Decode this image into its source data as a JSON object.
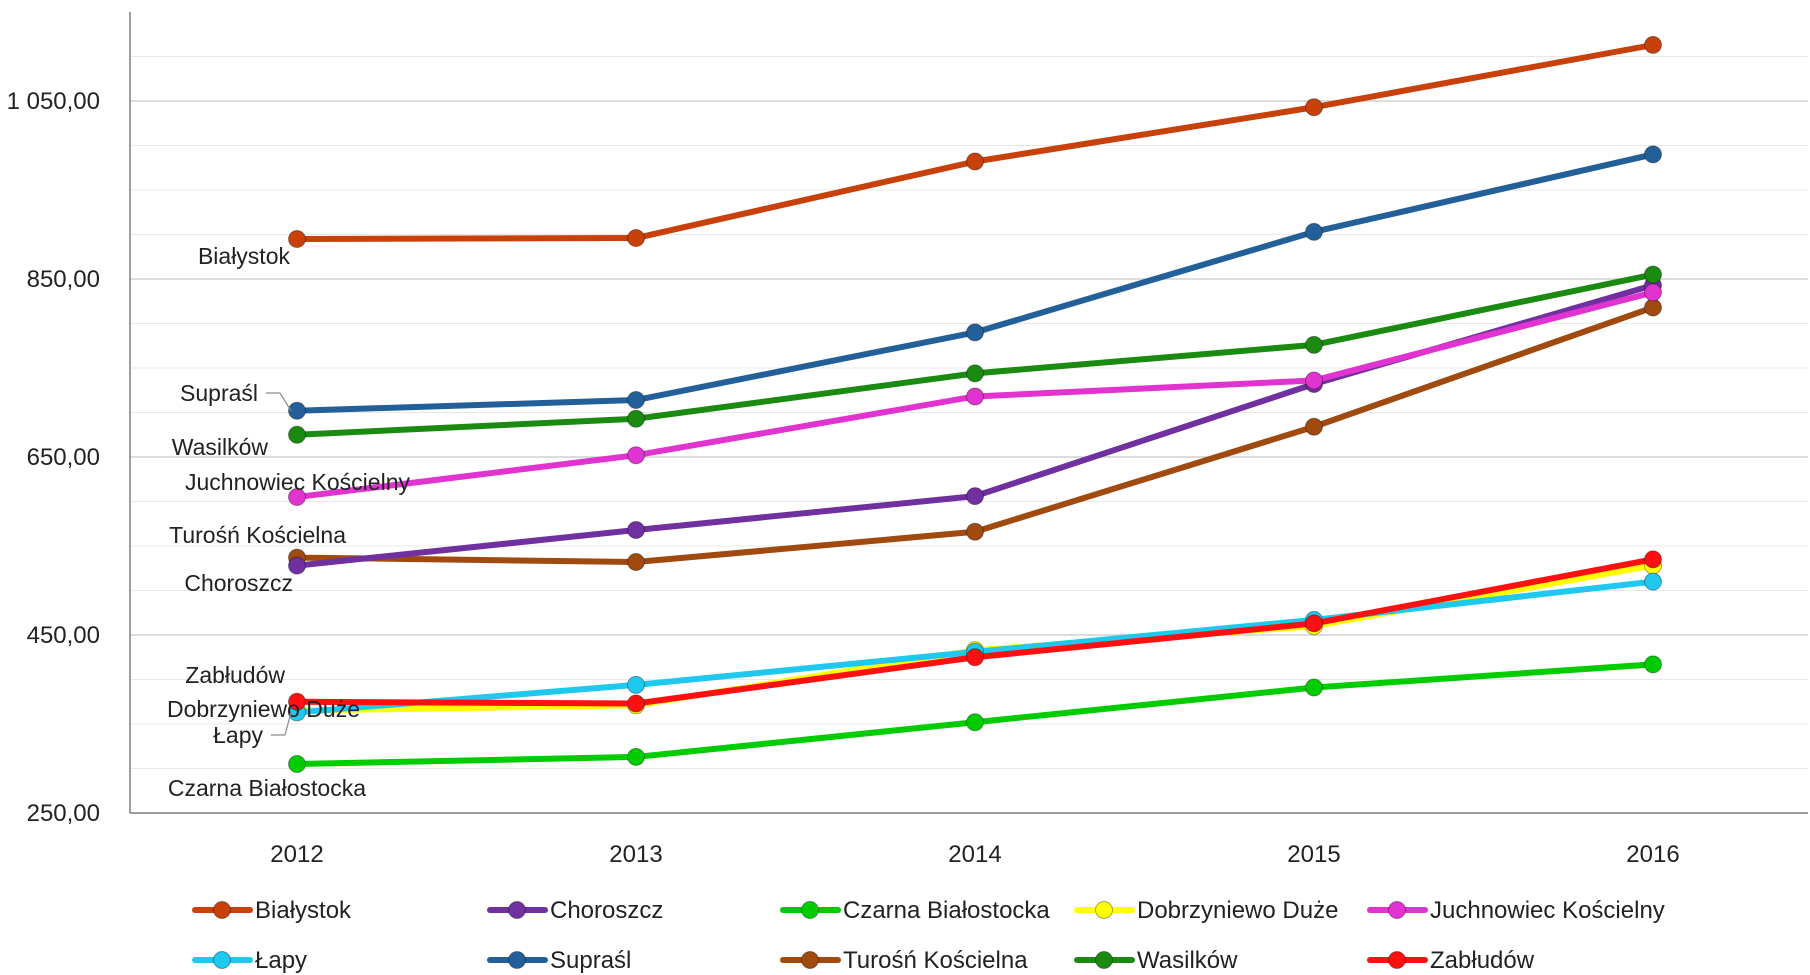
{
  "chart_data": {
    "type": "line",
    "title": "",
    "xlabel": "",
    "ylabel": "",
    "x": [
      "2012",
      "2013",
      "2014",
      "2015",
      "2016"
    ],
    "ylim": [
      250,
      1130
    ],
    "yticks": [
      250,
      450,
      650,
      850,
      1050
    ],
    "ytick_labels": [
      "250,00",
      "450,00",
      "650,00",
      "850,00",
      "1 050,00"
    ],
    "minor_gridlines": true,
    "legend_placement": "bottom",
    "series": [
      {
        "name": "Białystok",
        "color": "#c8400a",
        "values": [
          895,
          896,
          982,
          1043,
          1113
        ],
        "label": "Białystok"
      },
      {
        "name": "Choroszcz",
        "color": "#7030a0",
        "values": [
          528,
          568,
          606,
          732,
          843
        ],
        "label": "Choroszcz"
      },
      {
        "name": "Czarna Białostocka",
        "color": "#00cc00",
        "values": [
          305,
          313,
          352,
          391,
          417
        ],
        "label": "Czarna Białostocka"
      },
      {
        "name": "Dobrzyniewo Duże",
        "color": "#ffff00",
        "values": [
          365,
          371,
          433,
          460,
          528
        ],
        "label": "Dobrzyniewo Duże"
      },
      {
        "name": "Juchnowiec Kościelny",
        "color": "#e033d0",
        "values": [
          605,
          652,
          718,
          736,
          835
        ],
        "label": "Juchnowiec Kościelny"
      },
      {
        "name": "Łapy",
        "color": "#1ec8ee",
        "values": [
          363,
          394,
          431,
          467,
          510
        ],
        "label": "Łapy"
      },
      {
        "name": "Supraśl",
        "color": "#23609a",
        "values": [
          702,
          714,
          790,
          903,
          990
        ],
        "label": "Supraśl"
      },
      {
        "name": "Turośń Kościelna",
        "color": "#a04a10",
        "values": [
          537,
          532,
          566,
          684,
          818
        ],
        "label": "Turośń Kościelna"
      },
      {
        "name": "Wasilków",
        "color": "#1a8a10",
        "values": [
          675,
          693,
          744,
          776,
          855
        ],
        "label": "Wasilków"
      },
      {
        "name": "Zabłudów",
        "color": "#ff1010",
        "values": [
          375,
          373,
          425,
          463,
          535
        ],
        "label": "Zabłudów"
      }
    ]
  }
}
